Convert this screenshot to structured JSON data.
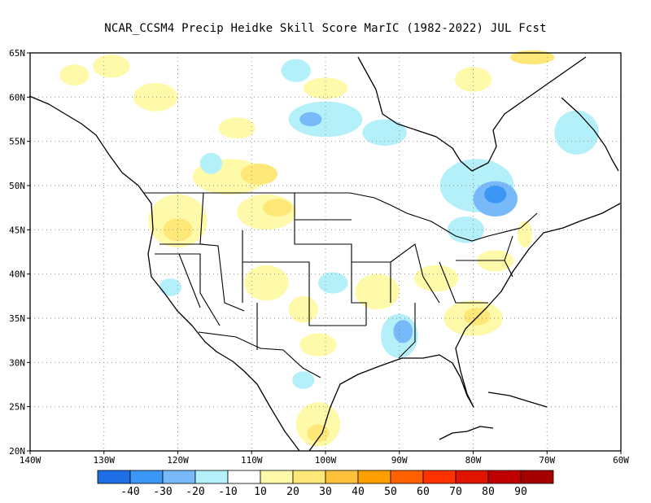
{
  "title": "NCAR_CCSM4 Precip Heidke Skill Score MarIC (1982-2022) JUL Fcst",
  "map": {
    "lon_range": [
      -140,
      -60
    ],
    "lat_range": [
      20,
      65
    ],
    "lon_ticks": [
      {
        "value": -140,
        "label": "140W"
      },
      {
        "value": -130,
        "label": "130W"
      },
      {
        "value": -120,
        "label": "120W"
      },
      {
        "value": -110,
        "label": "110W"
      },
      {
        "value": -100,
        "label": "100W"
      },
      {
        "value": -90,
        "label": "90W"
      },
      {
        "value": -80,
        "label": "80W"
      },
      {
        "value": -70,
        "label": "70W"
      },
      {
        "value": -60,
        "label": "60W"
      }
    ],
    "lat_ticks": [
      {
        "value": 20,
        "label": "20N"
      },
      {
        "value": 25,
        "label": "25N"
      },
      {
        "value": 30,
        "label": "30N"
      },
      {
        "value": 35,
        "label": "35N"
      },
      {
        "value": 40,
        "label": "40N"
      },
      {
        "value": 45,
        "label": "45N"
      },
      {
        "value": 50,
        "label": "50N"
      },
      {
        "value": 55,
        "label": "55N"
      },
      {
        "value": 60,
        "label": "60N"
      },
      {
        "value": 65,
        "label": "65N"
      }
    ],
    "gridlines": "dotted",
    "skill_regions": [
      {
        "lon": -129,
        "lat": 63.5,
        "rx": 2.5,
        "ry": 1.3,
        "level": 20
      },
      {
        "lon": -134,
        "lat": 62.5,
        "rx": 2,
        "ry": 1.2,
        "level": 20
      },
      {
        "lon": -123,
        "lat": 60,
        "rx": 3,
        "ry": 1.6,
        "level": 20
      },
      {
        "lon": -112,
        "lat": 56.5,
        "rx": 2.5,
        "ry": 1.2,
        "level": 20
      },
      {
        "lon": -72,
        "lat": 64.5,
        "rx": 3,
        "ry": 0.8,
        "level": 30
      },
      {
        "lon": -100,
        "lat": 61,
        "rx": 3,
        "ry": 1.2,
        "level": 20
      },
      {
        "lon": -80,
        "lat": 62,
        "rx": 2.5,
        "ry": 1.4,
        "level": 20
      },
      {
        "lon": -113,
        "lat": 51,
        "rx": 5,
        "ry": 2,
        "level": 20
      },
      {
        "lon": -109,
        "lat": 51.3,
        "rx": 2.5,
        "ry": 1.2,
        "level": 30
      },
      {
        "lon": -120,
        "lat": 46,
        "rx": 4,
        "ry": 3,
        "level": 20
      },
      {
        "lon": -120,
        "lat": 45,
        "rx": 2,
        "ry": 1.3,
        "level": 30
      },
      {
        "lon": -108,
        "lat": 47,
        "rx": 4,
        "ry": 2,
        "level": 20
      },
      {
        "lon": -106.5,
        "lat": 47.5,
        "rx": 2,
        "ry": 1,
        "level": 30
      },
      {
        "lon": -108,
        "lat": 39,
        "rx": 3,
        "ry": 2,
        "level": 20
      },
      {
        "lon": -103,
        "lat": 36,
        "rx": 2,
        "ry": 1.5,
        "level": 20
      },
      {
        "lon": -101,
        "lat": 32,
        "rx": 2.5,
        "ry": 1.3,
        "level": 20
      },
      {
        "lon": -101,
        "lat": 23,
        "rx": 3,
        "ry": 2.5,
        "level": 20
      },
      {
        "lon": -101,
        "lat": 22,
        "rx": 1.5,
        "ry": 1,
        "level": 30
      },
      {
        "lon": -93,
        "lat": 38,
        "rx": 3,
        "ry": 2,
        "level": 20
      },
      {
        "lon": -85,
        "lat": 39.5,
        "rx": 3,
        "ry": 1.5,
        "level": 20
      },
      {
        "lon": -80,
        "lat": 35,
        "rx": 4,
        "ry": 2,
        "level": 20
      },
      {
        "lon": -79.5,
        "lat": 35.2,
        "rx": 1.8,
        "ry": 1,
        "level": 30
      },
      {
        "lon": -77,
        "lat": 41.5,
        "rx": 2.5,
        "ry": 1.2,
        "level": 20
      },
      {
        "lon": -73,
        "lat": 44.5,
        "rx": 1,
        "ry": 1.5,
        "level": 20
      },
      {
        "lon": -104,
        "lat": 63,
        "rx": 2,
        "ry": 1.3,
        "level": -10
      },
      {
        "lon": -100,
        "lat": 57.5,
        "rx": 5,
        "ry": 2,
        "level": -10
      },
      {
        "lon": -102,
        "lat": 57.5,
        "rx": 1.5,
        "ry": 0.8,
        "level": -20
      },
      {
        "lon": -92,
        "lat": 56,
        "rx": 3,
        "ry": 1.5,
        "level": -10
      },
      {
        "lon": -115.5,
        "lat": 52.5,
        "rx": 1.5,
        "ry": 1.2,
        "level": -10
      },
      {
        "lon": -79.5,
        "lat": 50,
        "rx": 5,
        "ry": 3,
        "level": -10
      },
      {
        "lon": -77,
        "lat": 48.5,
        "rx": 3,
        "ry": 2,
        "level": -20
      },
      {
        "lon": -77,
        "lat": 49,
        "rx": 1.5,
        "ry": 1,
        "level": -30
      },
      {
        "lon": -81,
        "lat": 45,
        "rx": 2.5,
        "ry": 1.5,
        "level": -10
      },
      {
        "lon": -99,
        "lat": 39,
        "rx": 2,
        "ry": 1.2,
        "level": -10
      },
      {
        "lon": -90,
        "lat": 33,
        "rx": 2.5,
        "ry": 2.5,
        "level": -10
      },
      {
        "lon": -89.5,
        "lat": 33.5,
        "rx": 1.3,
        "ry": 1.3,
        "level": -20
      },
      {
        "lon": -66,
        "lat": 56,
        "rx": 3,
        "ry": 2.5,
        "level": -10
      },
      {
        "lon": -103,
        "lat": 28,
        "rx": 1.5,
        "ry": 1,
        "level": -10
      },
      {
        "lon": -121,
        "lat": 38.5,
        "rx": 1.5,
        "ry": 1,
        "level": -10
      }
    ]
  },
  "colorbar": {
    "boundaries": [
      -40,
      -30,
      -20,
      -10,
      10,
      20,
      30,
      40,
      50,
      60,
      70,
      80,
      90
    ],
    "labels": [
      "-40",
      "-30",
      "-20",
      "-10",
      "10",
      "20",
      "30",
      "40",
      "50",
      "60",
      "70",
      "80",
      "90"
    ],
    "colors": [
      "#1e6ee6",
      "#3c96f5",
      "#78b9fa",
      "#b4f0fa",
      "#ffffff",
      "#fffaaa",
      "#ffe878",
      "#ffc03c",
      "#ffa000",
      "#ff6000",
      "#ff3200",
      "#e11400",
      "#c00000",
      "#a50000"
    ]
  },
  "level_colors": {
    "-30": "#3c96f5",
    "-20": "#78b9fa",
    "-10": "#b4f0fa",
    "20": "#fffaaa",
    "30": "#ffe878"
  }
}
